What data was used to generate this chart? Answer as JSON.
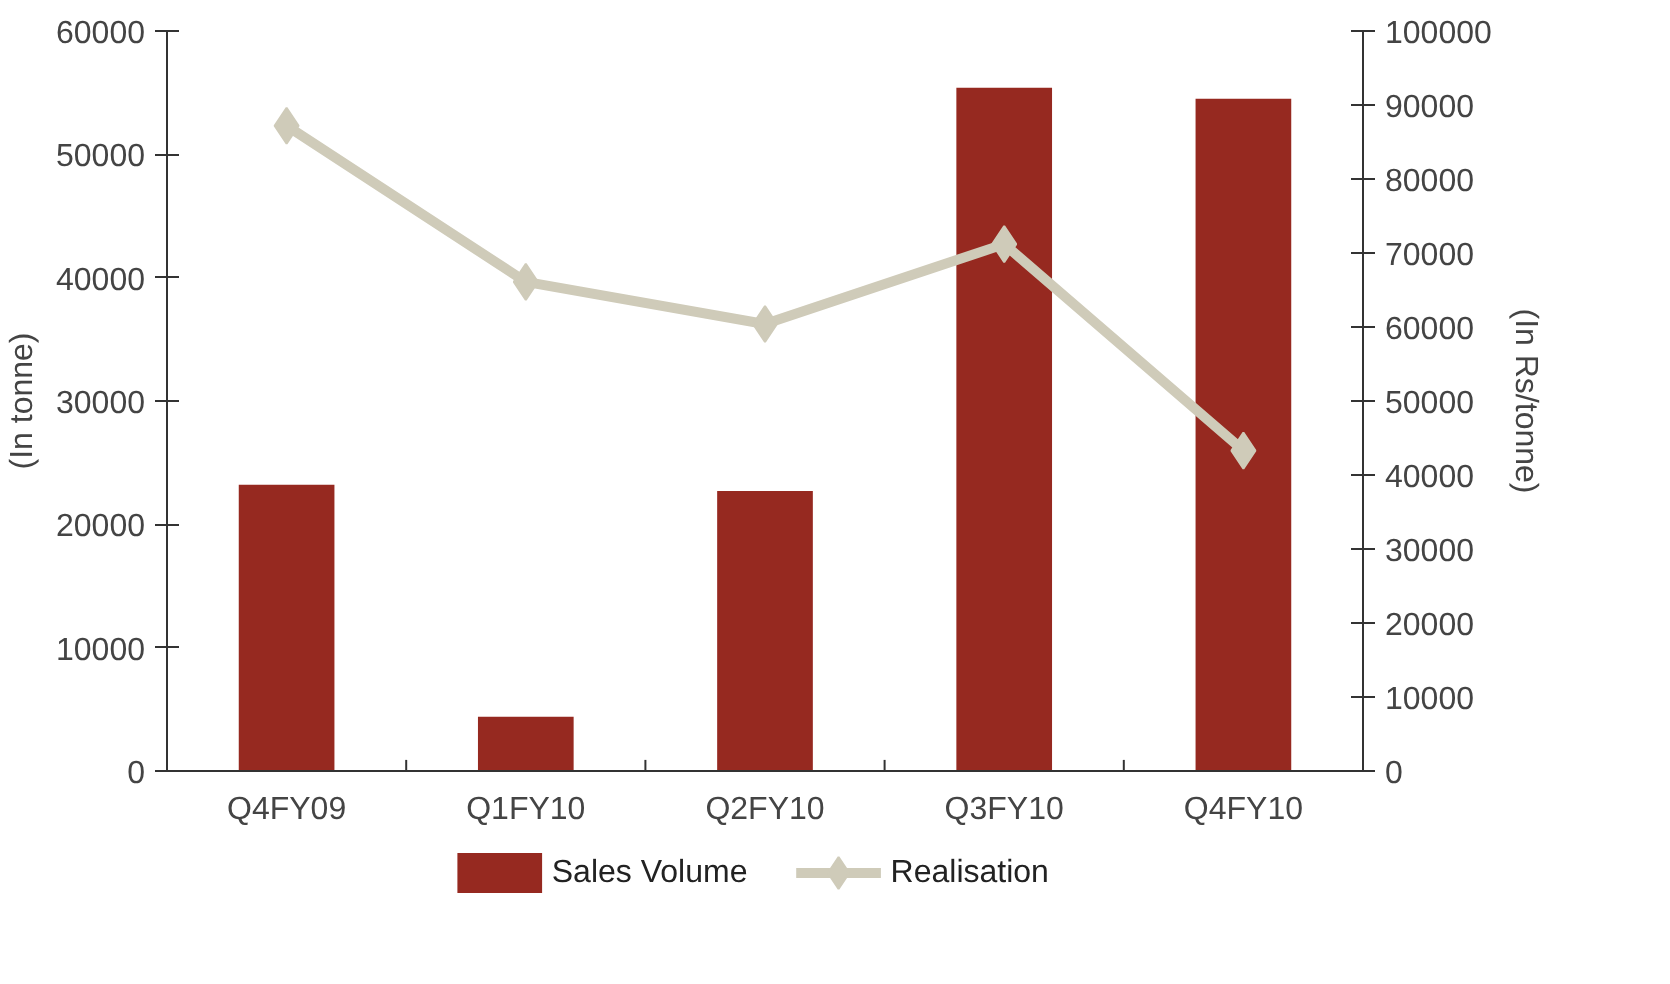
{
  "chart_data": {
    "type": "bar",
    "categories": [
      "Q4FY09",
      "Q1FY10",
      "Q2FY10",
      "Q3FY10",
      "Q4FY10"
    ],
    "series": [
      {
        "name": "Sales Volume",
        "color": "#962920",
        "values": [
          23200,
          4400,
          22700,
          55400,
          54500
        ]
      },
      {
        "name": "Realisation",
        "type": "line",
        "axis": "y2",
        "color": "#cfcbb9",
        "marker": "diamond",
        "values": [
          87200,
          66100,
          60400,
          71200,
          43300
        ]
      }
    ],
    "ylabel": "(In tonne)",
    "y2label": "(In Rs/tonne)",
    "ylim": [
      0,
      60000
    ],
    "yticks": [
      0,
      10000,
      20000,
      30000,
      40000,
      50000,
      60000
    ],
    "y2lim": [
      0,
      100000
    ],
    "y2ticks": [
      0,
      10000,
      20000,
      30000,
      40000,
      50000,
      60000,
      70000,
      80000,
      90000,
      100000
    ],
    "grid": false,
    "legend": "bottom"
  }
}
